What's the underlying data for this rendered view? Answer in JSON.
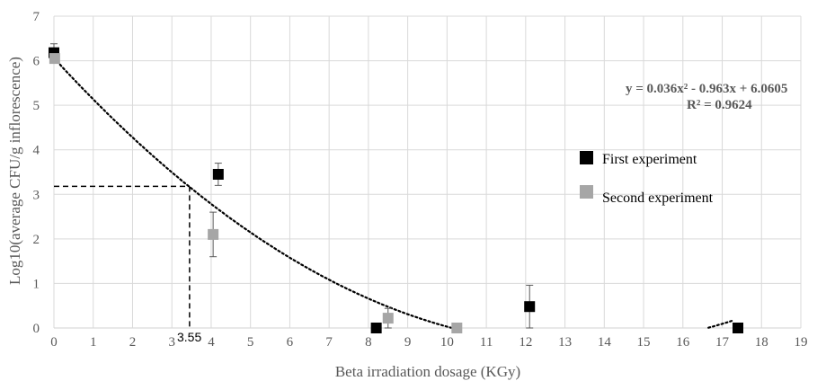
{
  "chart_data": {
    "type": "scatter",
    "title": "",
    "xlabel": "Beta irradiation dosage (KGy)",
    "ylabel": "Log10(average CFU/g inflorescence)",
    "xlim": [
      0,
      19
    ],
    "ylim": [
      0,
      7
    ],
    "x_ticks": [
      "0",
      "1",
      "2",
      "3",
      "4",
      "5",
      "6",
      "7",
      "8",
      "9",
      "10",
      "11",
      "12",
      "13",
      "14",
      "15",
      "16",
      "17",
      "18",
      "19"
    ],
    "y_ticks": [
      "0",
      "1",
      "2",
      "3",
      "4",
      "5",
      "6",
      "7"
    ],
    "grid": true,
    "legend_position": "right",
    "series": [
      {
        "name": "First experiment",
        "color": "#000000",
        "points": [
          {
            "x": 0.0,
            "y": 6.18,
            "err": 0.2
          },
          {
            "x": 4.18,
            "y": 3.45,
            "err": 0.25
          },
          {
            "x": 8.2,
            "y": 0.0,
            "err": 0
          },
          {
            "x": 12.1,
            "y": 0.48,
            "err": 0.48
          },
          {
            "x": 17.4,
            "y": 0.0,
            "err": 0
          }
        ]
      },
      {
        "name": "Second experiment",
        "color": "#a6a6a6",
        "points": [
          {
            "x": 0.02,
            "y": 6.05,
            "err": 0.0
          },
          {
            "x": 4.05,
            "y": 2.1,
            "err": 0.5
          },
          {
            "x": 8.5,
            "y": 0.22,
            "err": 0.22
          },
          {
            "x": 10.25,
            "y": 0.0,
            "err": 0
          }
        ]
      }
    ],
    "trendline": {
      "type": "polynomial",
      "coefficients": [
        0.036,
        -0.963,
        6.0605
      ],
      "x_range": [
        0,
        17.3
      ],
      "color": "#000000",
      "style": "dotted",
      "equation_text": "y = 0.036x² - 0.963x + 6.0605",
      "r2_text": "R² = 0.9624"
    },
    "reference_lines": {
      "x": 3.45,
      "y": 3.18
    },
    "annotation": "3.55"
  }
}
